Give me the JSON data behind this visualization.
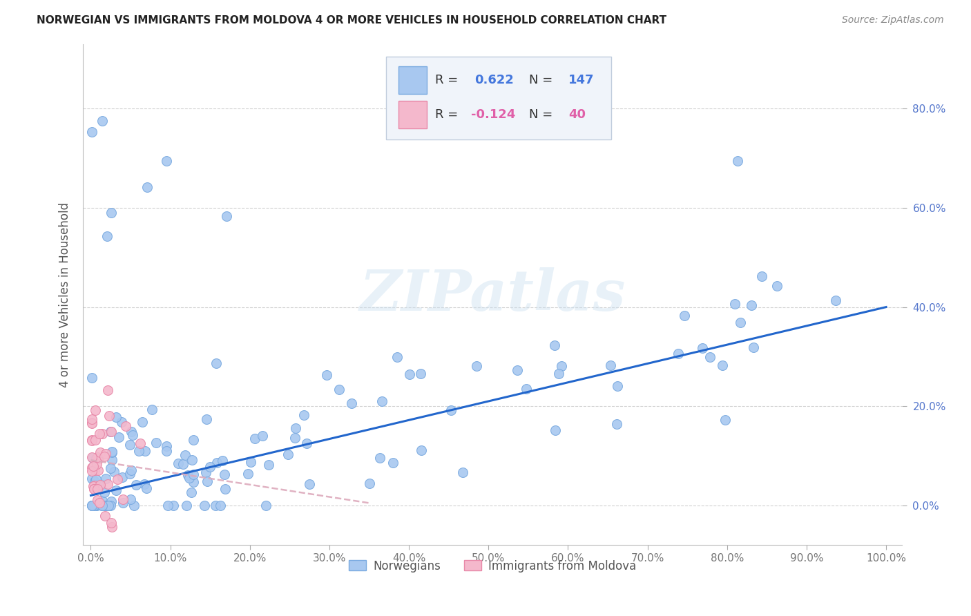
{
  "title": "NORWEGIAN VS IMMIGRANTS FROM MOLDOVA 4 OR MORE VEHICLES IN HOUSEHOLD CORRELATION CHART",
  "source": "Source: ZipAtlas.com",
  "ylabel": "4 or more Vehicles in Household",
  "xlim": [
    -0.01,
    1.02
  ],
  "ylim": [
    -0.08,
    0.93
  ],
  "ytick_vals": [
    0.0,
    0.2,
    0.4,
    0.6,
    0.8
  ],
  "xtick_vals": [
    0.0,
    0.1,
    0.2,
    0.3,
    0.4,
    0.5,
    0.6,
    0.7,
    0.8,
    0.9,
    1.0
  ],
  "norwegian_color": "#a8c8f0",
  "norwegian_edge_color": "#7aaae0",
  "moldovan_color": "#f4b8cc",
  "moldovan_edge_color": "#e888a8",
  "norwegian_line_color": "#2266cc",
  "moldovan_line_color": "#ddaabc",
  "R_norwegian": 0.622,
  "N_norwegian": 147,
  "R_moldovan": -0.124,
  "N_moldovan": 40,
  "watermark": "ZIPatlas",
  "background_color": "#ffffff",
  "legend_bg": "#f0f4fa",
  "legend_edge": "#c0ccdd",
  "title_color": "#222222",
  "source_color": "#888888",
  "tick_color_y": "#5577cc",
  "tick_color_x": "#777777",
  "ylabel_color": "#555555",
  "legend_text_color": "#333333",
  "legend_val_color": "#4477dd",
  "moldovan_val_color": "#e060a8"
}
